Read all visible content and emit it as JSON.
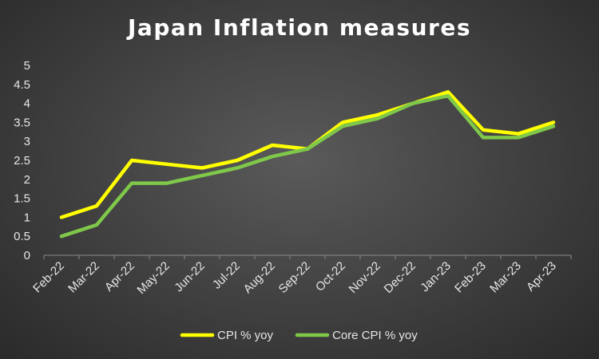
{
  "chart_data": {
    "type": "line",
    "title": "Japan Inflation measures",
    "xlabel": "",
    "ylabel": "",
    "categories": [
      "Feb-22",
      "Mar-22",
      "Apr-22",
      "May-22",
      "Jun-22",
      "Jul-22",
      "Aug-22",
      "Sep-22",
      "Oct-22",
      "Nov-22",
      "Dec-22",
      "Jan-23",
      "Feb-23",
      "Mar-23",
      "Apr-23"
    ],
    "ylim": [
      0,
      5
    ],
    "yticks": [
      "0",
      "0.5",
      "1",
      "1.5",
      "2",
      "2.5",
      "3",
      "3.5",
      "4",
      "4.5",
      "5"
    ],
    "grid": false,
    "legend": "bottom",
    "series": [
      {
        "name": "CPI % yoy",
        "color": "#ffff00",
        "values": [
          1.0,
          1.3,
          2.5,
          2.4,
          2.3,
          2.5,
          2.9,
          2.8,
          3.5,
          3.7,
          4.0,
          4.3,
          3.3,
          3.2,
          3.5
        ]
      },
      {
        "name": "Core CPI % yoy",
        "color": "#7fc84a",
        "values": [
          0.5,
          0.8,
          1.9,
          1.9,
          2.1,
          2.3,
          2.6,
          2.8,
          3.4,
          3.6,
          4.0,
          4.2,
          3.1,
          3.1,
          3.4
        ]
      }
    ]
  }
}
